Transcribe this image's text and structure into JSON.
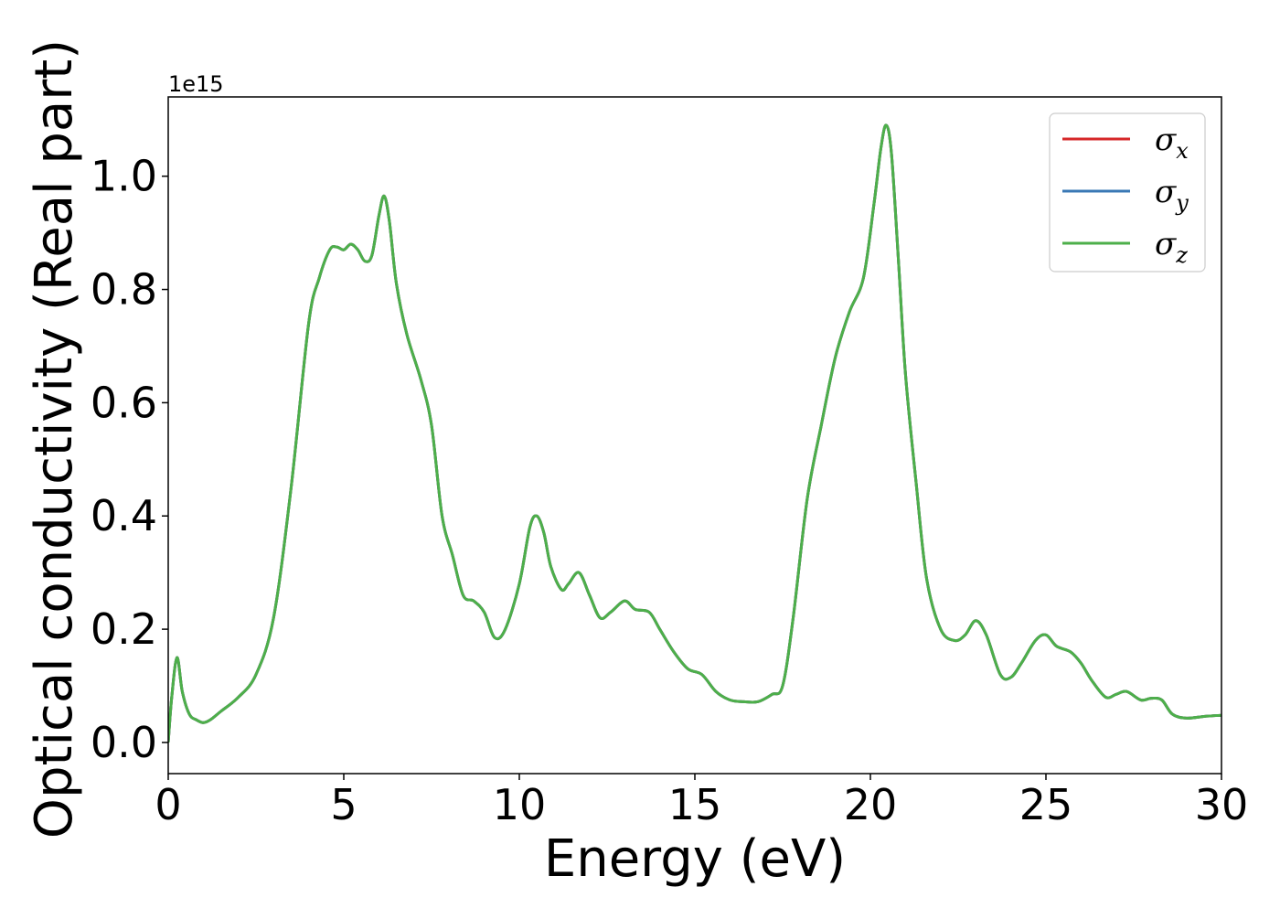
{
  "chart_data": {
    "type": "line",
    "xlabel": "Energy (eV)",
    "ylabel": "Optical conductivity (Real part)",
    "y_offset_label": "1e15",
    "xlim": [
      0,
      30
    ],
    "ylim": [
      -0.055,
      1.14
    ],
    "x_ticks": [
      {
        "value": 0,
        "label": "0"
      },
      {
        "value": 5,
        "label": "5"
      },
      {
        "value": 10,
        "label": "10"
      },
      {
        "value": 15,
        "label": "15"
      },
      {
        "value": 20,
        "label": "20"
      },
      {
        "value": 25,
        "label": "25"
      },
      {
        "value": 30,
        "label": "30"
      }
    ],
    "y_ticks": [
      {
        "value": 0.0,
        "label": "0.0"
      },
      {
        "value": 0.2,
        "label": "0.2"
      },
      {
        "value": 0.4,
        "label": "0.4"
      },
      {
        "value": 0.6,
        "label": "0.6"
      },
      {
        "value": 0.8,
        "label": "0.8"
      },
      {
        "value": 1.0,
        "label": "1.0"
      }
    ],
    "grid": false,
    "legend_position": "top-right",
    "x": [
      0.0,
      0.1,
      0.25,
      0.4,
      0.6,
      0.8,
      1.0,
      1.2,
      1.5,
      2.0,
      2.5,
      3.0,
      3.5,
      4.0,
      4.3,
      4.6,
      4.8,
      5.0,
      5.2,
      5.4,
      5.6,
      5.8,
      6.0,
      6.15,
      6.3,
      6.5,
      6.8,
      7.2,
      7.5,
      7.8,
      8.1,
      8.4,
      8.7,
      9.0,
      9.3,
      9.6,
      10.0,
      10.3,
      10.5,
      10.7,
      10.9,
      11.2,
      11.4,
      11.7,
      12.0,
      12.3,
      12.6,
      13.0,
      13.3,
      13.7,
      14.0,
      14.4,
      14.8,
      15.2,
      15.6,
      16.0,
      16.4,
      16.8,
      17.2,
      17.5,
      17.8,
      18.2,
      18.6,
      19.0,
      19.4,
      19.8,
      20.1,
      20.3,
      20.45,
      20.6,
      20.8,
      21.0,
      21.3,
      21.6,
      22.0,
      22.4,
      22.7,
      23.0,
      23.3,
      23.7,
      24.0,
      24.3,
      24.7,
      25.0,
      25.3,
      25.7,
      26.0,
      26.3,
      26.7,
      27.0,
      27.3,
      27.7,
      28.0,
      28.3,
      28.6,
      29.0,
      29.5,
      30.0
    ],
    "series": [
      {
        "name": "σx",
        "color": "#d62728",
        "values": [
          0.0,
          0.08,
          0.15,
          0.09,
          0.05,
          0.04,
          0.035,
          0.04,
          0.055,
          0.08,
          0.12,
          0.22,
          0.45,
          0.74,
          0.82,
          0.87,
          0.875,
          0.87,
          0.88,
          0.87,
          0.85,
          0.86,
          0.93,
          0.965,
          0.92,
          0.81,
          0.72,
          0.64,
          0.56,
          0.4,
          0.33,
          0.26,
          0.25,
          0.23,
          0.185,
          0.2,
          0.28,
          0.38,
          0.4,
          0.37,
          0.31,
          0.27,
          0.28,
          0.3,
          0.26,
          0.22,
          0.23,
          0.25,
          0.235,
          0.23,
          0.2,
          0.16,
          0.13,
          0.12,
          0.09,
          0.075,
          0.072,
          0.072,
          0.085,
          0.1,
          0.22,
          0.43,
          0.56,
          0.68,
          0.76,
          0.82,
          0.95,
          1.05,
          1.09,
          1.04,
          0.85,
          0.65,
          0.46,
          0.29,
          0.2,
          0.18,
          0.19,
          0.215,
          0.19,
          0.12,
          0.115,
          0.14,
          0.18,
          0.19,
          0.17,
          0.16,
          0.14,
          0.11,
          0.08,
          0.085,
          0.09,
          0.075,
          0.078,
          0.075,
          0.05,
          0.043,
          0.046,
          0.048
        ]
      },
      {
        "name": "σy",
        "color": "#3a78b5",
        "values": [
          0.0,
          0.08,
          0.15,
          0.09,
          0.05,
          0.04,
          0.035,
          0.04,
          0.055,
          0.08,
          0.12,
          0.22,
          0.45,
          0.74,
          0.82,
          0.87,
          0.875,
          0.87,
          0.88,
          0.87,
          0.85,
          0.86,
          0.93,
          0.965,
          0.92,
          0.81,
          0.72,
          0.64,
          0.56,
          0.4,
          0.33,
          0.26,
          0.25,
          0.23,
          0.185,
          0.2,
          0.28,
          0.38,
          0.4,
          0.37,
          0.31,
          0.27,
          0.28,
          0.3,
          0.26,
          0.22,
          0.23,
          0.25,
          0.235,
          0.23,
          0.2,
          0.16,
          0.13,
          0.12,
          0.09,
          0.075,
          0.072,
          0.072,
          0.085,
          0.1,
          0.22,
          0.43,
          0.56,
          0.68,
          0.76,
          0.82,
          0.95,
          1.05,
          1.09,
          1.04,
          0.85,
          0.65,
          0.46,
          0.29,
          0.2,
          0.18,
          0.19,
          0.215,
          0.19,
          0.12,
          0.115,
          0.14,
          0.18,
          0.19,
          0.17,
          0.16,
          0.14,
          0.11,
          0.08,
          0.085,
          0.09,
          0.075,
          0.078,
          0.075,
          0.05,
          0.043,
          0.046,
          0.048
        ]
      },
      {
        "name": "σz",
        "color": "#4daf4a",
        "values": [
          0.0,
          0.08,
          0.15,
          0.09,
          0.05,
          0.04,
          0.035,
          0.04,
          0.055,
          0.08,
          0.12,
          0.22,
          0.45,
          0.74,
          0.82,
          0.87,
          0.875,
          0.87,
          0.88,
          0.87,
          0.85,
          0.86,
          0.93,
          0.965,
          0.92,
          0.81,
          0.72,
          0.64,
          0.56,
          0.4,
          0.33,
          0.26,
          0.25,
          0.23,
          0.185,
          0.2,
          0.28,
          0.38,
          0.4,
          0.37,
          0.31,
          0.27,
          0.28,
          0.3,
          0.26,
          0.22,
          0.23,
          0.25,
          0.235,
          0.23,
          0.2,
          0.16,
          0.13,
          0.12,
          0.09,
          0.075,
          0.072,
          0.072,
          0.085,
          0.1,
          0.22,
          0.43,
          0.56,
          0.68,
          0.76,
          0.82,
          0.95,
          1.05,
          1.09,
          1.04,
          0.85,
          0.65,
          0.46,
          0.29,
          0.2,
          0.18,
          0.19,
          0.215,
          0.19,
          0.12,
          0.115,
          0.14,
          0.18,
          0.19,
          0.17,
          0.16,
          0.14,
          0.11,
          0.08,
          0.085,
          0.09,
          0.075,
          0.078,
          0.075,
          0.05,
          0.043,
          0.046,
          0.048
        ]
      }
    ],
    "legend": [
      {
        "symbol": "σ",
        "sub": "x",
        "color": "#d62728"
      },
      {
        "symbol": "σ",
        "sub": "y",
        "color": "#3a78b5"
      },
      {
        "symbol": "σ",
        "sub": "z",
        "color": "#4daf4a"
      }
    ]
  }
}
